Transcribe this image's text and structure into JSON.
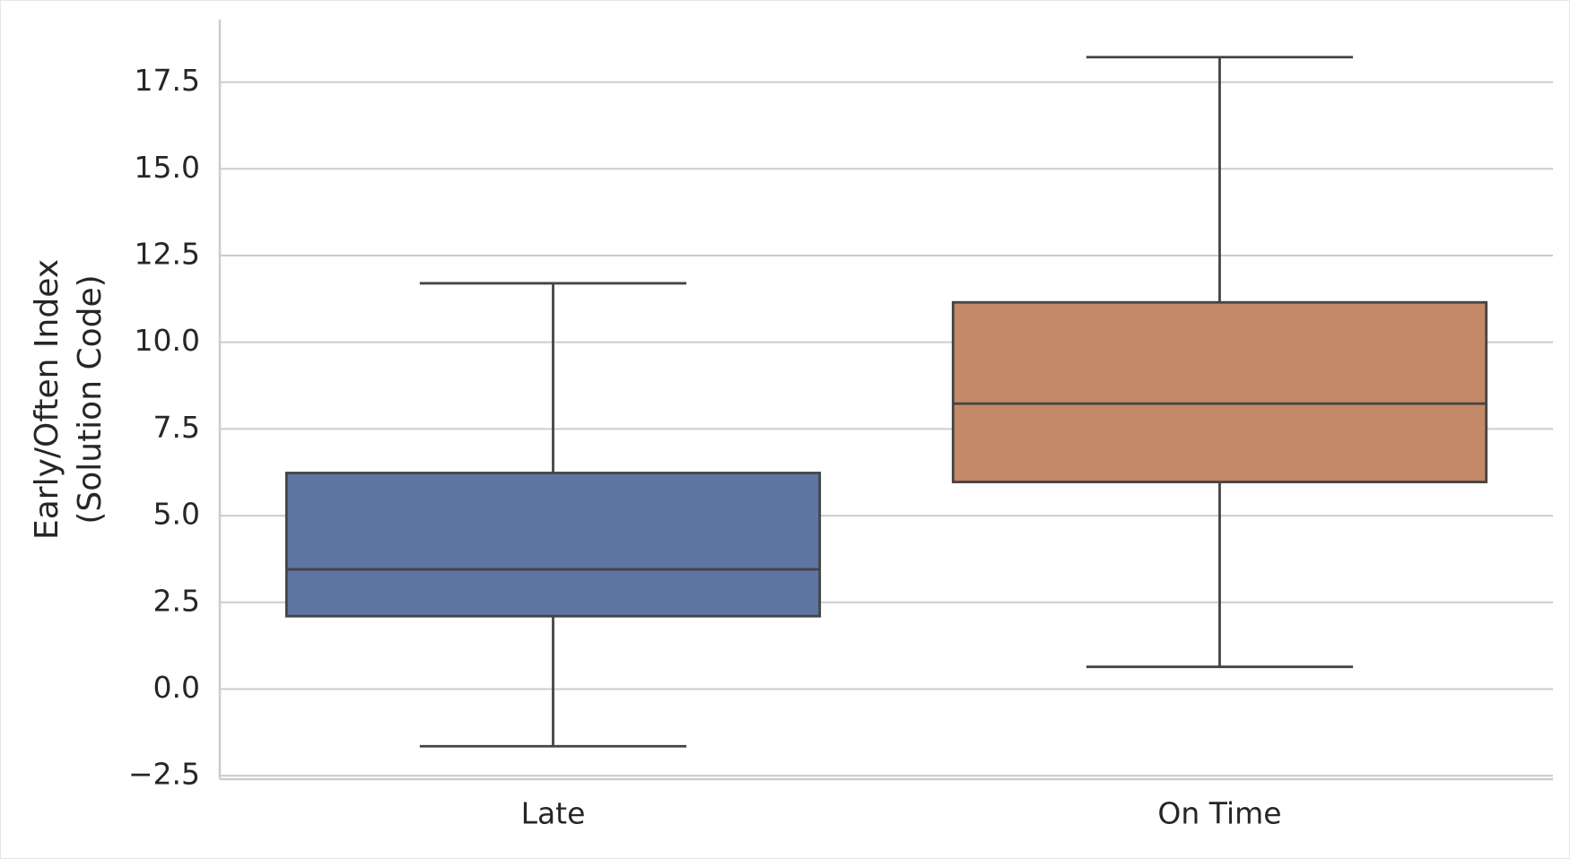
{
  "chart_data": {
    "type": "box",
    "ylabel": [
      "Early/Often Index",
      "(Solution Code)"
    ],
    "categories": [
      "Late",
      "On Time"
    ],
    "boxes": [
      {
        "color": "#5d75a0",
        "whisker_low": -1.65,
        "q1": 2.1,
        "median": 3.45,
        "q3": 6.23,
        "whisker_high": 11.7
      },
      {
        "color": "#c38968",
        "whisker_low": 0.64,
        "q1": 5.97,
        "median": 8.23,
        "q3": 11.15,
        "whisker_high": 18.22
      }
    ],
    "ylim": [
      -2.6,
      19.3
    ],
    "yticks": [
      {
        "value": -2.5,
        "label": "−2.5"
      },
      {
        "value": 0,
        "label": "0.0"
      },
      2.5,
      {
        "value": 5,
        "label": "5.0"
      },
      7.5,
      {
        "value": 10,
        "label": "10.0"
      },
      12.5,
      {
        "value": 15,
        "label": "15.0"
      },
      17.5
    ],
    "grid": true
  }
}
